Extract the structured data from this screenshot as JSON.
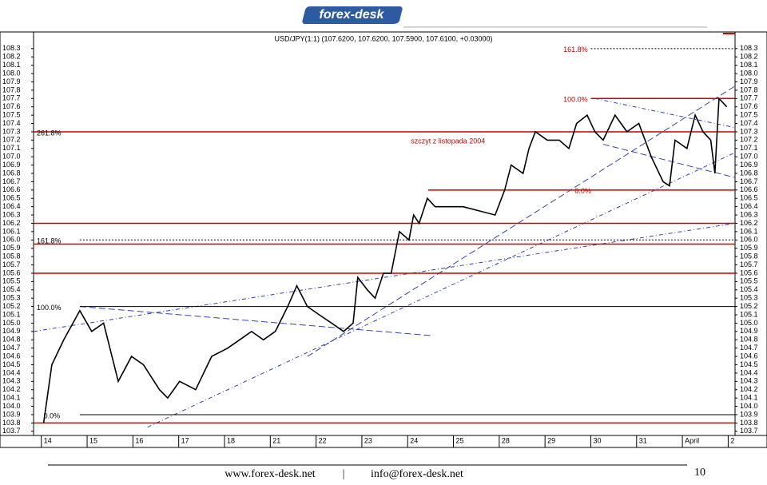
{
  "logo": "forex-desk",
  "chart_data": {
    "type": "line",
    "title": "USD/JPY(1:1) (107.6200, 107.6200, 107.5900, 107.6100, +0.03000)",
    "xlim": [
      -0.17,
      15.15
    ],
    "xticks": [
      {
        "value": 0,
        "label": "14"
      },
      {
        "value": 1,
        "label": "15"
      },
      {
        "value": 2,
        "label": "16"
      },
      {
        "value": 3,
        "label": "17"
      },
      {
        "value": 4,
        "label": "18"
      },
      {
        "value": 5,
        "label": "21"
      },
      {
        "value": 6,
        "label": "22"
      },
      {
        "value": 7,
        "label": "23"
      },
      {
        "value": 8,
        "label": "24"
      },
      {
        "value": 9,
        "label": "25"
      },
      {
        "value": 10,
        "label": "28"
      },
      {
        "value": 11,
        "label": "29"
      },
      {
        "value": 12,
        "label": "30"
      },
      {
        "value": 13,
        "label": "31"
      },
      {
        "value": 14,
        "label": "April"
      },
      {
        "value": 15,
        "label": "2"
      }
    ],
    "ylim": [
      103.65,
      108.5
    ],
    "yticks": [
      103.7,
      103.8,
      103.9,
      {
        "value": 104,
        "label": "104.0"
      },
      104.1,
      104.2,
      104.3,
      104.4,
      104.5,
      104.6,
      104.7,
      104.8,
      104.9,
      {
        "value": 105,
        "label": "105.0"
      },
      105.1,
      105.2,
      105.3,
      105.4,
      105.5,
      105.6,
      105.7,
      105.8,
      105.9,
      {
        "value": 106,
        "label": "106.0"
      },
      106.1,
      106.2,
      106.3,
      106.4,
      106.5,
      106.6,
      106.7,
      106.8,
      106.9,
      {
        "value": 107,
        "label": "107.0"
      },
      107.1,
      107.2,
      107.3,
      107.4,
      107.5,
      107.6,
      107.7,
      107.8,
      107.9,
      {
        "value": 108,
        "label": "108.0"
      },
      108.1,
      108.2,
      108.3
    ],
    "series": [
      {
        "name": "USD/JPY",
        "color": "#000000",
        "x": [
          0.05,
          0.23,
          0.49,
          0.84,
          1.1,
          1.36,
          1.68,
          1.97,
          2.23,
          2.58,
          2.76,
          3.02,
          3.37,
          3.72,
          4.07,
          4.33,
          4.59,
          4.85,
          5.11,
          5.38,
          5.58,
          5.81,
          6.07,
          6.34,
          6.6,
          6.81,
          6.91,
          7.12,
          7.29,
          7.47,
          7.64,
          7.82,
          8.03,
          8.13,
          8.25,
          8.43,
          8.6,
          8.87,
          9.21,
          9.56,
          9.91,
          10.12,
          10.26,
          10.52,
          10.65,
          10.79,
          11.05,
          11.31,
          11.52,
          11.69,
          11.92,
          12.09,
          12.27,
          12.53,
          12.79,
          13.05,
          13.32,
          13.58,
          13.72,
          13.84,
          14.1,
          14.28,
          14.45,
          14.62,
          14.71,
          14.8,
          14.97
        ],
        "values": [
          103.8,
          104.5,
          104.8,
          105.15,
          104.9,
          105.0,
          104.3,
          104.6,
          104.5,
          104.2,
          104.1,
          104.3,
          104.2,
          104.6,
          104.7,
          104.8,
          104.9,
          104.8,
          104.9,
          105.2,
          105.45,
          105.2,
          105.1,
          105.0,
          104.9,
          105.0,
          105.55,
          105.4,
          105.3,
          105.6,
          105.6,
          106.1,
          106.0,
          106.3,
          106.2,
          106.5,
          106.4,
          106.4,
          106.4,
          106.35,
          106.3,
          106.6,
          106.9,
          106.8,
          107.1,
          107.3,
          107.2,
          107.2,
          107.1,
          107.4,
          107.5,
          107.3,
          107.2,
          107.5,
          107.3,
          107.4,
          107.0,
          106.7,
          106.65,
          107.2,
          107.1,
          107.5,
          107.3,
          107.2,
          106.8,
          107.7,
          107.6
        ]
      }
    ],
    "levels": [
      {
        "value": 107.3,
        "from": -0.17,
        "color": "#cc0000"
      },
      {
        "value": 106.2,
        "from": -0.17,
        "color": "#cc0000"
      },
      {
        "value": 105.95,
        "from": -0.17,
        "color": "#cc0000"
      },
      {
        "value": 105.6,
        "from": -0.17,
        "color": "#cc0000"
      },
      {
        "value": 103.8,
        "from": -0.17,
        "color": "#cc0000"
      },
      {
        "value": 107.7,
        "from": 12.0,
        "color": "#cc0000"
      },
      {
        "value": 106.6,
        "from": 8.45,
        "color": "#cc0000"
      },
      {
        "value": 105.2,
        "from": 0.84,
        "color": "#000000"
      },
      {
        "value": 103.9,
        "from": 0.84,
        "color": "#000000"
      }
    ],
    "dotted_levels": [
      {
        "value": 106.0,
        "from": 0.84
      },
      {
        "value": 108.3,
        "from": 12.0
      }
    ],
    "fib_labels": [
      {
        "text": "261.8%",
        "x": -0.1,
        "y": 107.3
      },
      {
        "text": "161.8%",
        "x": -0.1,
        "y": 106.0
      },
      {
        "text": "100.0%",
        "x": -0.1,
        "y": 105.2
      },
      {
        "text": "0.0%",
        "x": 0.05,
        "y": 103.9
      },
      {
        "text": "161.8%",
        "x": 11.4,
        "y": 108.3
      },
      {
        "text": "100.0%",
        "x": 11.4,
        "y": 107.7
      },
      {
        "text": "0.0%",
        "x": 11.65,
        "y": 106.6
      }
    ],
    "annotation": {
      "text": "szczyt z listopada 2004",
      "x": 8.07,
      "y": 107.2
    },
    "trendlines": [
      [
        -0.17,
        104.9,
        15.15,
        106.2
      ],
      [
        0.84,
        105.2,
        8.52,
        104.85
      ],
      [
        2.32,
        103.75,
        15.15,
        107.05
      ],
      [
        5.81,
        104.6,
        15.15,
        107.85
      ],
      [
        12.09,
        107.7,
        15.15,
        107.35
      ],
      [
        12.27,
        107.15,
        15.15,
        106.75
      ]
    ]
  },
  "footer": {
    "web": "www.forex-desk.net",
    "sep": "|",
    "email": "info@forex-desk.net",
    "page": "10"
  }
}
